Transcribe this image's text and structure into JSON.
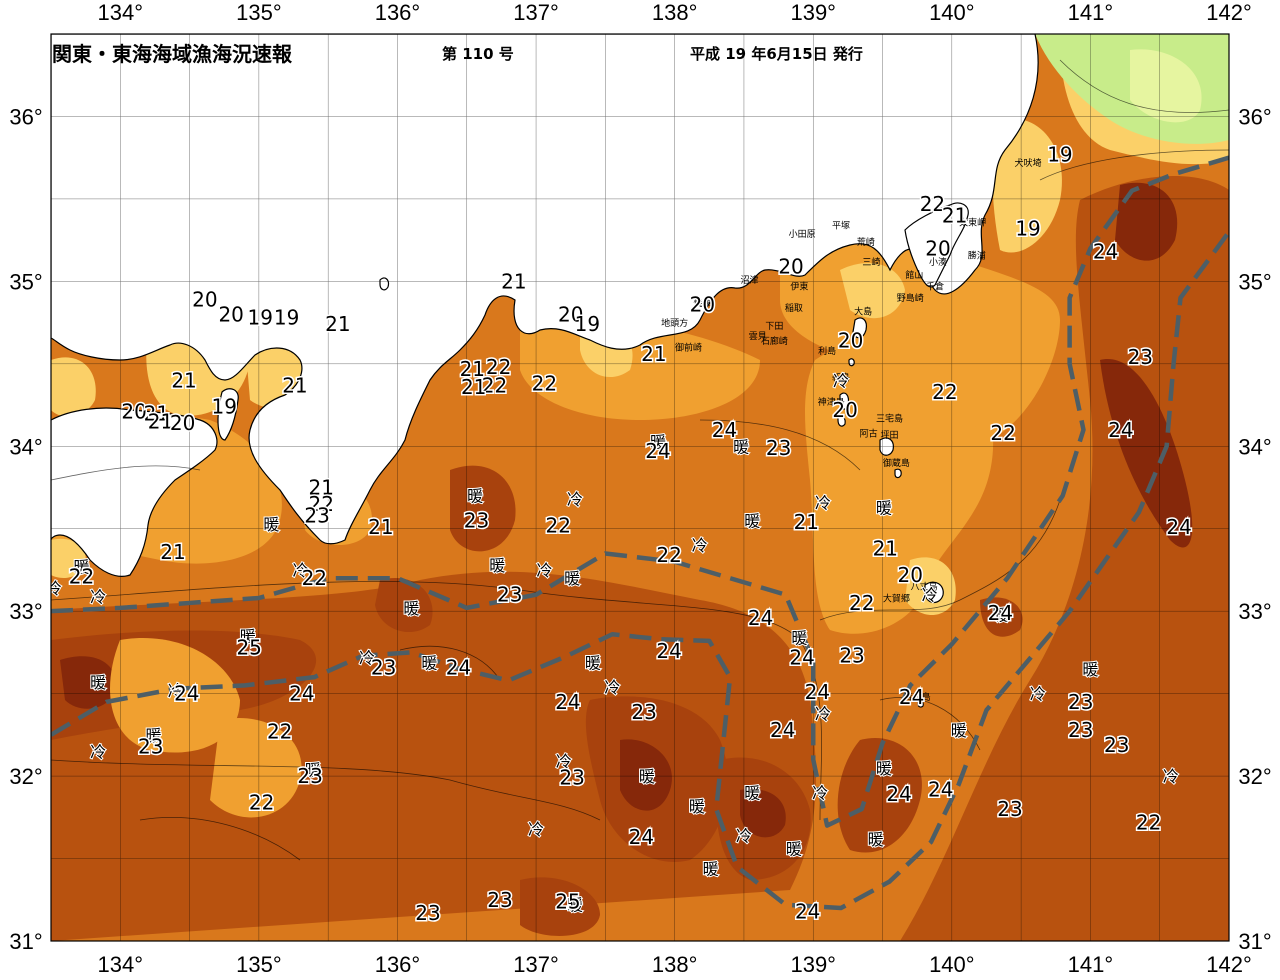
{
  "header": {
    "title": "関東・東海海域漁海況速報",
    "issue": "第 110 号",
    "date": "平成 19 年6月15日 発行"
  },
  "axes": {
    "lon_ticks": [
      "134°",
      "135°",
      "136°",
      "137°",
      "138°",
      "139°",
      "140°",
      "141°",
      "142°"
    ],
    "lat_ticks": [
      "31°",
      "32°",
      "33°",
      "34°",
      "35°",
      "36°"
    ],
    "lon_range": [
      133.5,
      142
    ],
    "lat_range": [
      31,
      36.5
    ]
  },
  "colors": {
    "land": "#ffffff",
    "sea_base": "#d9781c",
    "warm": "#a8420d",
    "very_warm": "#86280a",
    "cool": "#f0a030",
    "coastal_cool": "#fbd068",
    "cold_north": "#c8ec8a",
    "kuroshio_axis": "#4d5e66",
    "grid": "#000000"
  },
  "sst_labels": [
    {
      "text": "19",
      "lon": 140.78,
      "lat": 35.77
    },
    {
      "text": "19",
      "lon": 140.55,
      "lat": 35.32
    },
    {
      "text": "22",
      "lon": 139.86,
      "lat": 35.47
    },
    {
      "text": "21",
      "lon": 140.02,
      "lat": 35.4
    },
    {
      "text": "20",
      "lon": 139.9,
      "lat": 35.2
    },
    {
      "text": "20",
      "lon": 138.84,
      "lat": 35.09
    },
    {
      "text": "20",
      "lon": 138.2,
      "lat": 34.86
    },
    {
      "text": "21",
      "lon": 136.84,
      "lat": 35.0
    },
    {
      "text": "20",
      "lon": 137.25,
      "lat": 34.8
    },
    {
      "text": "19",
      "lon": 137.37,
      "lat": 34.74
    },
    {
      "text": "21",
      "lon": 137.85,
      "lat": 34.56
    },
    {
      "text": "22",
      "lon": 136.73,
      "lat": 34.48
    },
    {
      "text": "21",
      "lon": 136.54,
      "lat": 34.47
    },
    {
      "text": "22",
      "lon": 136.7,
      "lat": 34.37
    },
    {
      "text": "21",
      "lon": 136.55,
      "lat": 34.36
    },
    {
      "text": "22",
      "lon": 137.06,
      "lat": 34.38
    },
    {
      "text": "20",
      "lon": 134.61,
      "lat": 34.89
    },
    {
      "text": "20",
      "lon": 134.8,
      "lat": 34.8
    },
    {
      "text": "19",
      "lon": 135.01,
      "lat": 34.78
    },
    {
      "text": "19",
      "lon": 135.2,
      "lat": 34.78
    },
    {
      "text": "21",
      "lon": 135.57,
      "lat": 34.74
    },
    {
      "text": "21",
      "lon": 134.46,
      "lat": 34.4
    },
    {
      "text": "21",
      "lon": 135.26,
      "lat": 34.37
    },
    {
      "text": "19",
      "lon": 134.75,
      "lat": 34.24
    },
    {
      "text": "20",
      "lon": 134.1,
      "lat": 34.21
    },
    {
      "text": "21",
      "lon": 134.26,
      "lat": 34.2
    },
    {
      "text": "21",
      "lon": 134.29,
      "lat": 34.15
    },
    {
      "text": "20",
      "lon": 134.45,
      "lat": 34.14
    },
    {
      "text": "22",
      "lon": 133.72,
      "lat": 33.21
    },
    {
      "text": "21",
      "lon": 134.38,
      "lat": 33.36
    },
    {
      "text": "22",
      "lon": 135.4,
      "lat": 33.2
    },
    {
      "text": "21",
      "lon": 135.45,
      "lat": 33.75
    },
    {
      "text": "22",
      "lon": 135.45,
      "lat": 33.65
    },
    {
      "text": "23",
      "lon": 135.42,
      "lat": 33.58
    },
    {
      "text": "21",
      "lon": 135.88,
      "lat": 33.51
    },
    {
      "text": "23",
      "lon": 136.57,
      "lat": 33.55
    },
    {
      "text": "22",
      "lon": 137.16,
      "lat": 33.52
    },
    {
      "text": "23",
      "lon": 136.81,
      "lat": 33.1
    },
    {
      "text": "22",
      "lon": 137.96,
      "lat": 33.34
    },
    {
      "text": "24",
      "lon": 138.36,
      "lat": 34.1
    },
    {
      "text": "24",
      "lon": 137.88,
      "lat": 33.97
    },
    {
      "text": "23",
      "lon": 138.75,
      "lat": 33.99
    },
    {
      "text": "21",
      "lon": 138.95,
      "lat": 33.54
    },
    {
      "text": "21",
      "lon": 139.52,
      "lat": 33.38
    },
    {
      "text": "20",
      "lon": 139.7,
      "lat": 33.22
    },
    {
      "text": "22",
      "lon": 139.35,
      "lat": 33.05
    },
    {
      "text": "20",
      "lon": 139.27,
      "lat": 34.64
    },
    {
      "text": "20",
      "lon": 139.23,
      "lat": 34.22
    },
    {
      "text": "22",
      "lon": 139.95,
      "lat": 34.33
    },
    {
      "text": "22",
      "lon": 140.37,
      "lat": 34.08
    },
    {
      "text": "24",
      "lon": 141.11,
      "lat": 35.18
    },
    {
      "text": "23",
      "lon": 141.36,
      "lat": 34.54
    },
    {
      "text": "24",
      "lon": 141.22,
      "lat": 34.1
    },
    {
      "text": "24",
      "lon": 141.64,
      "lat": 33.51
    },
    {
      "text": "24",
      "lon": 140.35,
      "lat": 32.99
    },
    {
      "text": "24",
      "lon": 138.62,
      "lat": 32.96
    },
    {
      "text": "24",
      "lon": 138.92,
      "lat": 32.72
    },
    {
      "text": "23",
      "lon": 139.28,
      "lat": 32.73
    },
    {
      "text": "24",
      "lon": 139.03,
      "lat": 32.51
    },
    {
      "text": "24",
      "lon": 138.78,
      "lat": 32.28
    },
    {
      "text": "24",
      "lon": 137.96,
      "lat": 32.76
    },
    {
      "text": "24",
      "lon": 136.44,
      "lat": 32.66
    },
    {
      "text": "23",
      "lon": 135.9,
      "lat": 32.66
    },
    {
      "text": "25",
      "lon": 134.93,
      "lat": 32.78
    },
    {
      "text": "24",
      "lon": 134.48,
      "lat": 32.5
    },
    {
      "text": "24",
      "lon": 135.31,
      "lat": 32.5
    },
    {
      "text": "22",
      "lon": 135.15,
      "lat": 32.27
    },
    {
      "text": "23",
      "lon": 134.22,
      "lat": 32.18
    },
    {
      "text": "23",
      "lon": 135.37,
      "lat": 32.0
    },
    {
      "text": "22",
      "lon": 135.02,
      "lat": 31.84
    },
    {
      "text": "24",
      "lon": 137.23,
      "lat": 32.45
    },
    {
      "text": "23",
      "lon": 137.78,
      "lat": 32.39
    },
    {
      "text": "23",
      "lon": 137.26,
      "lat": 31.99
    },
    {
      "text": "24",
      "lon": 137.76,
      "lat": 31.63
    },
    {
      "text": "23",
      "lon": 136.74,
      "lat": 31.25
    },
    {
      "text": "23",
      "lon": 136.22,
      "lat": 31.17
    },
    {
      "text": "25",
      "lon": 137.23,
      "lat": 31.24
    },
    {
      "text": "24",
      "lon": 138.96,
      "lat": 31.18
    },
    {
      "text": "24",
      "lon": 139.71,
      "lat": 32.48
    },
    {
      "text": "24",
      "lon": 139.62,
      "lat": 31.89
    },
    {
      "text": "24",
      "lon": 139.92,
      "lat": 31.92
    },
    {
      "text": "23",
      "lon": 140.42,
      "lat": 31.8
    },
    {
      "text": "23",
      "lon": 140.93,
      "lat": 32.45
    },
    {
      "text": "23",
      "lon": 140.93,
      "lat": 32.28
    },
    {
      "text": "23",
      "lon": 141.19,
      "lat": 32.19
    },
    {
      "text": "22",
      "lon": 141.42,
      "lat": 31.72
    }
  ],
  "warm_cold_marks": [
    {
      "text": "暖",
      "lon": 133.72,
      "lat": 33.27
    },
    {
      "text": "冷",
      "lon": 133.52,
      "lat": 33.14
    },
    {
      "text": "冷",
      "lon": 133.84,
      "lat": 33.09
    },
    {
      "text": "暖",
      "lon": 135.09,
      "lat": 33.53
    },
    {
      "text": "冷",
      "lon": 135.3,
      "lat": 33.25
    },
    {
      "text": "暖",
      "lon": 134.92,
      "lat": 32.85
    },
    {
      "text": "暖",
      "lon": 133.84,
      "lat": 32.57
    },
    {
      "text": "冷",
      "lon": 134.4,
      "lat": 32.52
    },
    {
      "text": "冷",
      "lon": 133.84,
      "lat": 32.15
    },
    {
      "text": "暖",
      "lon": 134.24,
      "lat": 32.25
    },
    {
      "text": "冷",
      "lon": 135.78,
      "lat": 32.72
    },
    {
      "text": "暖",
      "lon": 136.23,
      "lat": 32.69
    },
    {
      "text": "暖",
      "lon": 136.1,
      "lat": 33.02
    },
    {
      "text": "暖",
      "lon": 135.39,
      "lat": 32.04
    },
    {
      "text": "暖",
      "lon": 136.56,
      "lat": 33.7
    },
    {
      "text": "冷",
      "lon": 137.28,
      "lat": 33.68
    },
    {
      "text": "暖",
      "lon": 136.72,
      "lat": 33.28
    },
    {
      "text": "冷",
      "lon": 137.06,
      "lat": 33.25
    },
    {
      "text": "暖",
      "lon": 137.26,
      "lat": 33.2
    },
    {
      "text": "暖",
      "lon": 137.88,
      "lat": 34.03
    },
    {
      "text": "暖",
      "lon": 138.48,
      "lat": 34.0
    },
    {
      "text": "暖",
      "lon": 138.56,
      "lat": 33.55
    },
    {
      "text": "冷",
      "lon": 138.18,
      "lat": 33.4
    },
    {
      "text": "暖",
      "lon": 137.41,
      "lat": 32.69
    },
    {
      "text": "冷",
      "lon": 137.55,
      "lat": 32.54
    },
    {
      "text": "冷",
      "lon": 137.2,
      "lat": 32.09
    },
    {
      "text": "暖",
      "lon": 137.8,
      "lat": 32.0
    },
    {
      "text": "暖",
      "lon": 138.16,
      "lat": 31.82
    },
    {
      "text": "暖",
      "lon": 138.56,
      "lat": 31.9
    },
    {
      "text": "冷",
      "lon": 137.0,
      "lat": 31.68
    },
    {
      "text": "冷",
      "lon": 138.5,
      "lat": 31.64
    },
    {
      "text": "暖",
      "lon": 138.86,
      "lat": 31.56
    },
    {
      "text": "暖",
      "lon": 138.26,
      "lat": 31.44
    },
    {
      "text": "暖",
      "lon": 137.28,
      "lat": 31.22
    },
    {
      "text": "暖",
      "lon": 138.9,
      "lat": 32.84
    },
    {
      "text": "冷",
      "lon": 139.07,
      "lat": 32.38
    },
    {
      "text": "冷",
      "lon": 139.05,
      "lat": 31.9
    },
    {
      "text": "暖",
      "lon": 139.51,
      "lat": 32.05
    },
    {
      "text": "暖",
      "lon": 139.45,
      "lat": 31.62
    },
    {
      "text": "冷",
      "lon": 139.07,
      "lat": 33.66
    },
    {
      "text": "暖",
      "lon": 139.51,
      "lat": 33.63
    },
    {
      "text": "冷",
      "lon": 139.84,
      "lat": 33.1
    },
    {
      "text": "冷",
      "lon": 139.2,
      "lat": 34.4
    },
    {
      "text": "暖",
      "lon": 140.35,
      "lat": 32.98
    },
    {
      "text": "暖",
      "lon": 140.05,
      "lat": 32.28
    },
    {
      "text": "冷",
      "lon": 140.62,
      "lat": 32.5
    },
    {
      "text": "暖",
      "lon": 141.0,
      "lat": 32.65
    },
    {
      "text": "冷",
      "lon": 141.58,
      "lat": 32.0
    }
  ],
  "place_names": [
    {
      "text": "犬吠埼",
      "lon": 140.55,
      "lat": 35.7
    },
    {
      "text": "太東岬",
      "lon": 140.15,
      "lat": 35.34
    },
    {
      "text": "勝浦",
      "lon": 140.18,
      "lat": 35.14
    },
    {
      "text": "小湊",
      "lon": 139.9,
      "lat": 35.1
    },
    {
      "text": "千倉",
      "lon": 139.88,
      "lat": 34.95
    },
    {
      "text": "野島崎",
      "lon": 139.7,
      "lat": 34.88
    },
    {
      "text": "館山",
      "lon": 139.73,
      "lat": 35.02
    },
    {
      "text": "三崎",
      "lon": 139.42,
      "lat": 35.1
    },
    {
      "text": "荒崎",
      "lon": 139.38,
      "lat": 35.22
    },
    {
      "text": "平塚",
      "lon": 139.2,
      "lat": 35.32
    },
    {
      "text": "小田原",
      "lon": 138.92,
      "lat": 35.27
    },
    {
      "text": "沼津",
      "lon": 138.54,
      "lat": 34.99
    },
    {
      "text": "伊東",
      "lon": 138.9,
      "lat": 34.95
    },
    {
      "text": "稲取",
      "lon": 138.86,
      "lat": 34.82
    },
    {
      "text": "下田",
      "lon": 138.72,
      "lat": 34.71
    },
    {
      "text": "石廊崎",
      "lon": 138.72,
      "lat": 34.62
    },
    {
      "text": "雲見",
      "lon": 138.6,
      "lat": 34.65
    },
    {
      "text": "大島",
      "lon": 139.36,
      "lat": 34.8
    },
    {
      "text": "利島",
      "lon": 139.1,
      "lat": 34.56
    },
    {
      "text": "新島",
      "lon": 139.2,
      "lat": 34.4
    },
    {
      "text": "神津島",
      "lon": 139.13,
      "lat": 34.25
    },
    {
      "text": "三宅島",
      "lon": 139.55,
      "lat": 34.15
    },
    {
      "text": "阿古",
      "lon": 139.4,
      "lat": 34.06
    },
    {
      "text": "坪田",
      "lon": 139.55,
      "lat": 34.05
    },
    {
      "text": "御蔵島",
      "lon": 139.6,
      "lat": 33.88
    },
    {
      "text": "八丈島",
      "lon": 139.8,
      "lat": 33.13
    },
    {
      "text": "大賀郷",
      "lon": 139.6,
      "lat": 33.06
    },
    {
      "text": "御前崎",
      "lon": 138.1,
      "lat": 34.58
    },
    {
      "text": "地頭方",
      "lon": 138.0,
      "lat": 34.73
    },
    {
      "text": "焼津",
      "lon": 138.2,
      "lat": 34.85
    },
    {
      "text": "青ヶ島",
      "lon": 139.75,
      "lat": 32.46
    }
  ],
  "kuroshio_axis_path": [
    [
      133.5,
      32.25
    ],
    [
      133.9,
      32.45
    ],
    [
      134.4,
      32.53
    ],
    [
      134.9,
      32.55
    ],
    [
      135.4,
      32.6
    ],
    [
      135.75,
      32.73
    ],
    [
      136.1,
      32.75
    ],
    [
      136.45,
      32.65
    ],
    [
      136.8,
      32.58
    ],
    [
      137.2,
      32.72
    ],
    [
      137.55,
      32.86
    ],
    [
      137.9,
      32.83
    ],
    [
      138.25,
      32.82
    ],
    [
      138.4,
      32.6
    ],
    [
      138.35,
      32.2
    ],
    [
      138.3,
      31.8
    ],
    [
      138.45,
      31.45
    ],
    [
      138.8,
      31.22
    ],
    [
      139.2,
      31.2
    ],
    [
      139.55,
      31.36
    ],
    [
      139.85,
      31.6
    ],
    [
      140.05,
      31.95
    ],
    [
      140.25,
      32.4
    ],
    [
      140.55,
      32.7
    ],
    [
      140.85,
      33.0
    ],
    [
      141.1,
      33.3
    ],
    [
      141.35,
      33.6
    ],
    [
      141.55,
      34.0
    ],
    [
      141.6,
      34.5
    ],
    [
      141.65,
      34.9
    ],
    [
      142.0,
      35.3
    ]
  ],
  "kuroshio_axis_path_2": [
    [
      133.5,
      33.0
    ],
    [
      134.0,
      33.02
    ],
    [
      134.5,
      33.05
    ],
    [
      135.0,
      33.08
    ],
    [
      135.5,
      33.2
    ],
    [
      136.0,
      33.2
    ],
    [
      136.5,
      33.02
    ],
    [
      137.0,
      33.1
    ],
    [
      137.5,
      33.35
    ],
    [
      138.0,
      33.3
    ],
    [
      138.4,
      33.2
    ],
    [
      138.8,
      33.1
    ],
    [
      139.0,
      32.7
    ],
    [
      139.0,
      32.1
    ],
    [
      139.1,
      31.7
    ],
    [
      139.35,
      31.8
    ],
    [
      139.5,
      32.2
    ],
    [
      139.7,
      32.55
    ],
    [
      140.0,
      32.8
    ],
    [
      140.4,
      33.2
    ],
    [
      140.8,
      33.7
    ],
    [
      140.95,
      34.1
    ],
    [
      140.85,
      34.5
    ],
    [
      140.85,
      34.9
    ],
    [
      141.0,
      35.2
    ],
    [
      141.3,
      35.55
    ],
    [
      141.6,
      35.65
    ],
    [
      142.0,
      35.75
    ]
  ]
}
